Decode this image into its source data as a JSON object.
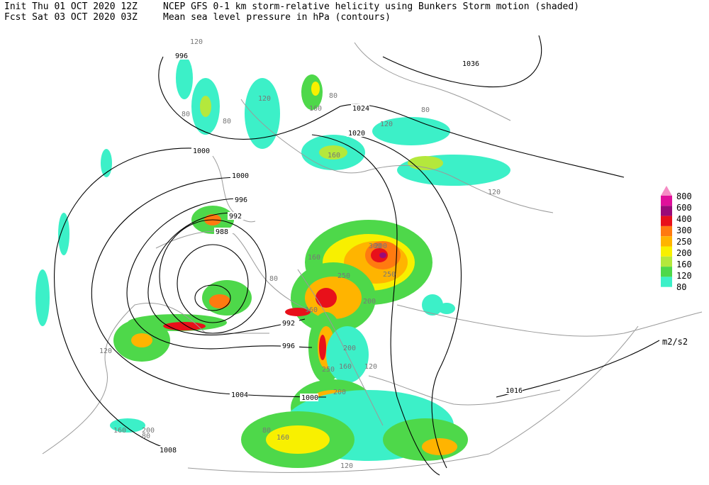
{
  "header": {
    "line1_left": "Init  Thu 01 OCT 2020 12Z",
    "line1_right": "NCEP GFS 0-1 km storm-relative helicity using Bunkers Storm motion (shaded)",
    "line2_left": "Fcst Sat 03 OCT 2020 03Z",
    "line2_right": "Mean sea level pressure in hPa (contours)"
  },
  "legend": {
    "labels": [
      "800",
      "600",
      "400",
      "300",
      "250",
      "200",
      "160",
      "120",
      "80"
    ],
    "colors": [
      "#f58cc4",
      "#e0109a",
      "#9a0a78",
      "#e8101a",
      "#ff7a10",
      "#ffb400",
      "#f8f000",
      "#b4e83c",
      "#4ed84a",
      "#3cf0c8"
    ],
    "units": "m2/s2"
  },
  "map": {
    "isobar_labels": [
      "996",
      "1036",
      "1024",
      "1020",
      "1000",
      "1000",
      "996",
      "992",
      "988",
      "992",
      "996",
      "1004",
      "1000",
      "1008",
      "1016"
    ],
    "helicity_labels": [
      "120",
      "80",
      "80",
      "120",
      "160",
      "80",
      "160",
      "120",
      "80",
      "120",
      "200",
      "160",
      "300",
      "250",
      "250",
      "200",
      "160",
      "250",
      "200",
      "160",
      "120",
      "80",
      "160",
      "200",
      "160",
      "120",
      "80",
      "200",
      "80",
      "120"
    ]
  }
}
